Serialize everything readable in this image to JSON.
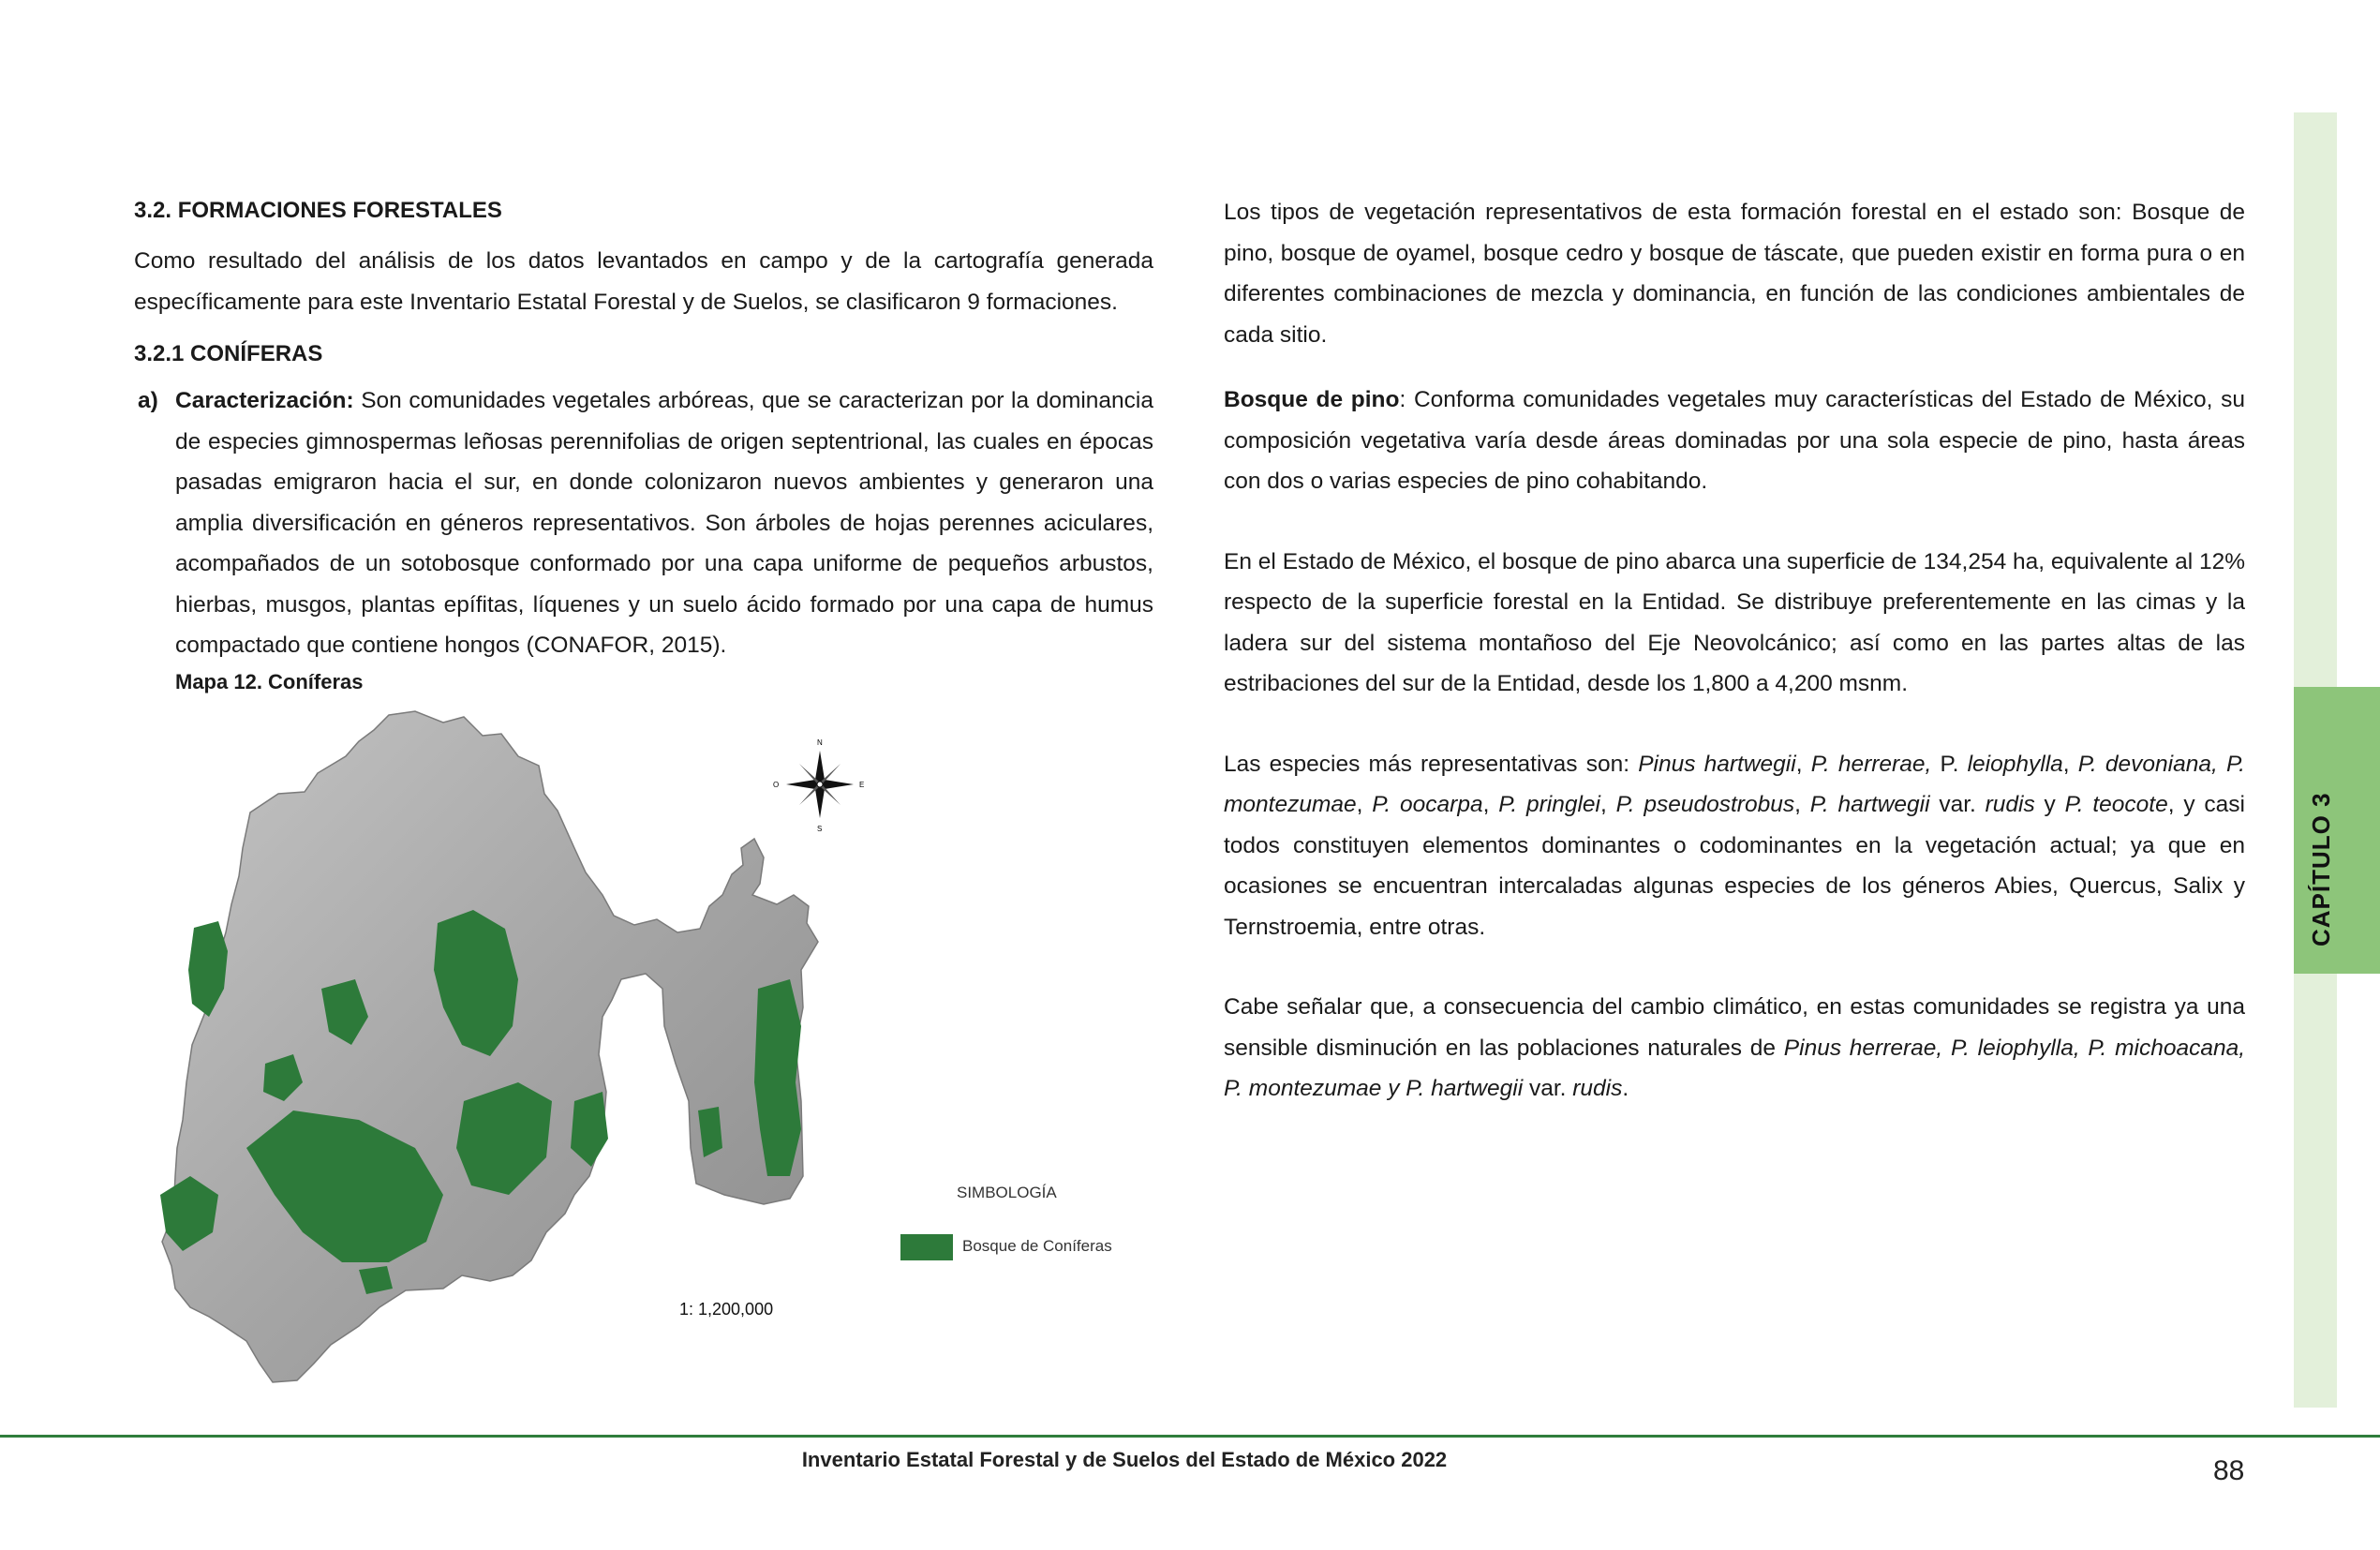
{
  "left": {
    "heading1": "3.2. FORMACIONES FORESTALES",
    "intro": "Como resultado del análisis de los datos levantados en campo y de la cartografía generada específicamente para este Inventario Estatal Forestal y de Suelos, se clasificaron 9 formaciones.",
    "heading2": "3.2.1 CONÍFERAS",
    "item_marker": "a)",
    "item_label": "Caracterización:",
    "item_text": " Son comunidades vegetales arbóreas, que se caracterizan por la dominancia de especies gimnospermas leñosas perennifolias de origen septentrional, las cuales en épocas pasadas emigraron hacia el sur, en donde colonizaron nuevos ambientes y generaron una amplia diversificación en géneros representativos. Son árboles de hojas perennes aciculares, acompañados de un sotobosque conformado por una capa uniforme de pequeños arbustos, hierbas, musgos, plantas epífitas, líquenes y un suelo ácido formado por una capa de humus compactado que contiene hongos (CONAFOR, 2015).",
    "map_caption": "Mapa 12.  Coníferas"
  },
  "map": {
    "legend_title": "SIMBOLOGÍA",
    "legend_label": "Bosque de Coníferas",
    "scale": "1: 1,200,000",
    "compass": {
      "n": "N",
      "s": "S",
      "e": "E",
      "o": "O"
    },
    "colors": {
      "terrain": "#a9a9a9",
      "conifer": "#2d7a3a"
    }
  },
  "right": {
    "p1": "Los tipos de vegetación representativos de esta formación forestal en el estado son: Bosque de pino, bosque de oyamel, bosque cedro y bosque de táscate, que pueden existir en forma pura o en diferentes combinaciones de mezcla y dominancia, en función de las condiciones ambientales de cada sitio.",
    "p2_label": "Bosque de pino",
    "p2_text": ": Conforma comunidades vegetales muy características del Estado de México, su composición vegetativa varía desde áreas dominadas por una sola especie de pino, hasta áreas con dos o varias especies de pino cohabitando.",
    "p3": "En el Estado de México, el bosque de pino abarca una superficie de 134,254 ha, equivalente al 12% respecto de la superficie forestal en la Entidad. Se distribuye preferentemente en las cimas y la ladera sur del sistema montañoso del Eje Neovolcánico; así como en las partes altas de las estribaciones del sur de la Entidad, desde los 1,800 a 4,200 msnm.",
    "p4": {
      "s1": "Las especies más representativas son: ",
      "s2": "Pinus hartwegii",
      "s3": ", ",
      "s4": "P. herrerae,",
      "s5": " P. ",
      "s6": "leiophylla",
      "s7": ", ",
      "s8": "P. devoniana, P. montezumae",
      "s9": ", ",
      "s10": "P. oocarpa",
      "s11": ", ",
      "s12": "P. pringlei",
      "s13": ", ",
      "s14": "P. pseudostrobus",
      "s15": ", ",
      "s16": "P. hartwegii",
      "s17": " var. ",
      "s18": "rudis",
      "s19": " y ",
      "s20": "P. teocote",
      "s21": ", y casi todos constituyen elementos dominantes o codominantes en la vegetación actual; ya que en ocasiones se encuentran intercaladas algunas especies de los géneros Abies, Quercus, Salix y Ternstroemia,  entre otras."
    },
    "p5": {
      "s1": "Cabe señalar que, a consecuencia del cambio climático, en estas comunidades se registra ya una sensible disminución en las poblaciones naturales de ",
      "s2": "Pinus herrerae, P. leiophylla, P.  michoacana, P. montezumae y P. hartwegii",
      "s3": " var. ",
      "s4": "rudis",
      "s5": "."
    }
  },
  "sidebar": {
    "chapter": "CAPÍTULO 3"
  },
  "footer": {
    "title": "Inventario Estatal Forestal y de Suelos del Estado de México 2022",
    "page": "88"
  }
}
